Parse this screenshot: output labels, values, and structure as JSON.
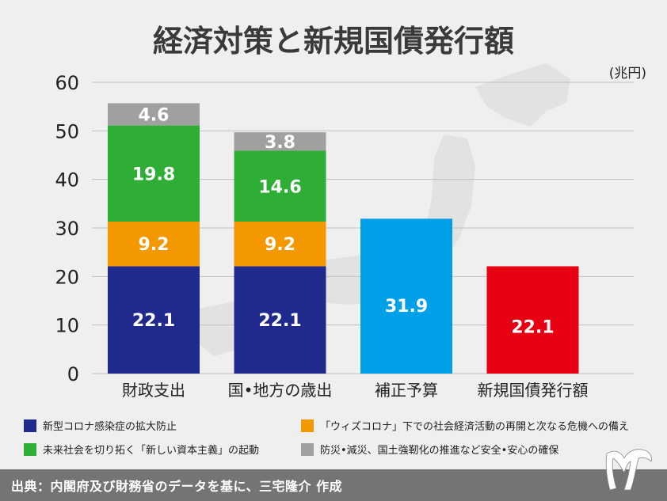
{
  "header": {
    "title": "経済対策と新規国債発行額",
    "unit": "(兆円)"
  },
  "chart_data": {
    "type": "bar",
    "stacked": true,
    "title": "経済対策と新規国債発行額",
    "ylabel": "(兆円)",
    "ylim": [
      0,
      60
    ],
    "yticks": [
      0,
      10,
      20,
      30,
      40,
      50,
      60
    ],
    "grid": true,
    "categories": [
      "財政支出",
      "国•地方の歳出",
      "補正予算",
      "新規国債発行額"
    ],
    "series": [
      {
        "name": "新型コロナ感染症の拡大防止",
        "color": "#202a8c",
        "values": [
          22.1,
          22.1,
          null,
          null
        ]
      },
      {
        "name": "「ウィズコロナ」下での社会経済活動の再開と次なる危機への備え",
        "color": "#f39800",
        "values": [
          9.2,
          9.2,
          null,
          null
        ]
      },
      {
        "name": "未来社会を切り拓く「新しい資本主義」の起動",
        "color": "#2fae36",
        "values": [
          19.8,
          14.6,
          null,
          null
        ]
      },
      {
        "name": "防災•減災、国土強靭化の推進など安全•安心の確保",
        "color": "#a0a0a0",
        "values": [
          4.6,
          3.8,
          null,
          null
        ]
      }
    ],
    "single_bars": [
      {
        "category": "補正予算",
        "value": 31.9,
        "color": "#00a0e9"
      },
      {
        "category": "新規国債発行額",
        "value": 22.1,
        "color": "#e60012"
      }
    ],
    "legend_placement": "bottom"
  },
  "legend": [
    {
      "label": "新型コロナ感染症の拡大防止",
      "color": "#202a8c"
    },
    {
      "label": "「ウィズコロナ」下での社会経済活動の再開と次なる危機への備え",
      "color": "#f39800"
    },
    {
      "label": "未来社会を切り拓く「新しい資本主義」の起動",
      "color": "#2fae36"
    },
    {
      "label": "防災•減災、国土強靭化の推進など安全•安心の確保",
      "color": "#a0a0a0"
    }
  ],
  "footer": {
    "source": "出典：内閣府及び財務省のデータを基に、三宅隆介 作成"
  }
}
